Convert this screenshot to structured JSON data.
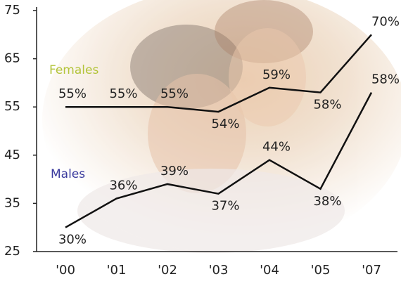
{
  "chart_data": {
    "type": "line",
    "categories": [
      "'00",
      "'01",
      "'02",
      "'03",
      "'04",
      "'05",
      "'07"
    ],
    "series": [
      {
        "name": "Females",
        "color": "#b3c43a",
        "line_color": "#111111",
        "values": [
          55,
          55,
          55,
          54,
          59,
          58,
          70
        ],
        "value_labels": [
          "55%",
          "55%",
          "55%",
          "54%",
          "59%",
          "58%",
          "70%"
        ]
      },
      {
        "name": "Males",
        "color": "#3b3b9e",
        "line_color": "#111111",
        "values": [
          30,
          36,
          39,
          37,
          44,
          38,
          58
        ],
        "value_labels": [
          "30%",
          "36%",
          "39%",
          "37%",
          "44%",
          "38%",
          "58%"
        ]
      }
    ],
    "ylim": [
      25,
      75
    ],
    "yticks": [
      25,
      35,
      45,
      55,
      65,
      75
    ]
  }
}
